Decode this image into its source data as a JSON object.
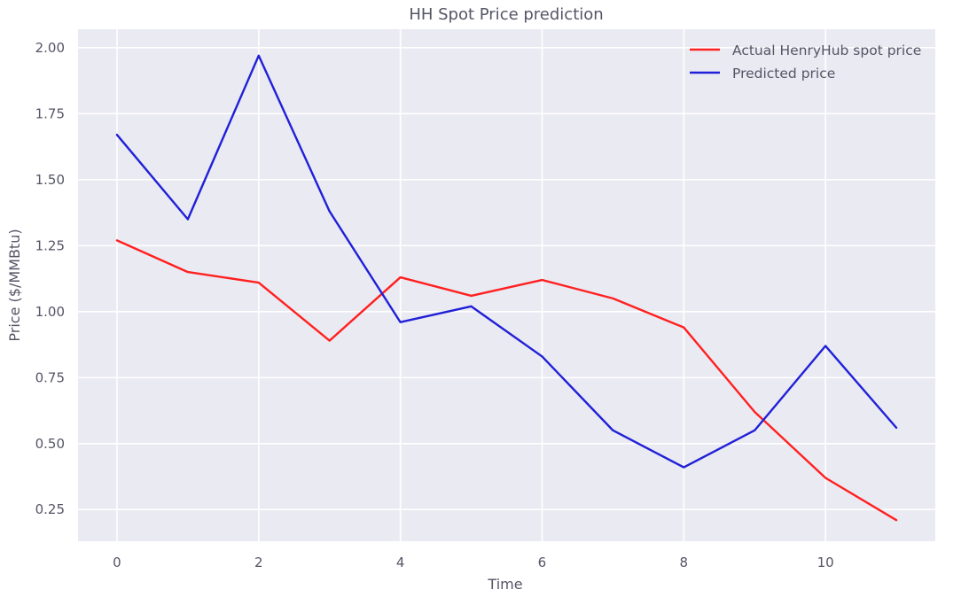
{
  "chart_data": {
    "type": "line",
    "title": "HH Spot Price prediction",
    "xlabel": "Time",
    "ylabel": "Price ($/MMBtu)",
    "x": [
      0,
      1,
      2,
      3,
      4,
      5,
      6,
      7,
      8,
      9,
      10,
      11
    ],
    "xlim": [
      -0.55,
      11.55
    ],
    "ylim": [
      0.13,
      2.07
    ],
    "xticks": [
      0,
      2,
      4,
      6,
      8,
      10
    ],
    "xtick_labels": [
      "0",
      "2",
      "4",
      "6",
      "8",
      "10"
    ],
    "yticks": [
      0.25,
      0.5,
      0.75,
      1.0,
      1.25,
      1.5,
      1.75,
      2.0
    ],
    "ytick_labels": [
      "0.25",
      "0.50",
      "0.75",
      "1.00",
      "1.25",
      "1.50",
      "1.75",
      "2.00"
    ],
    "grid": true,
    "legend_position": "top-right",
    "colors": {
      "background": "#eaeaf2",
      "grid": "#ffffff"
    },
    "series": [
      {
        "name": "Actual HenryHub spot price",
        "color": "#ff2020",
        "values": [
          1.27,
          1.15,
          1.11,
          0.89,
          1.13,
          1.06,
          1.12,
          1.05,
          0.94,
          0.62,
          0.37,
          0.21
        ]
      },
      {
        "name": "Predicted price",
        "color": "#2020d8",
        "values": [
          1.67,
          1.35,
          1.97,
          1.38,
          0.96,
          1.02,
          0.83,
          0.55,
          0.41,
          0.55,
          0.87,
          0.56
        ]
      }
    ]
  }
}
